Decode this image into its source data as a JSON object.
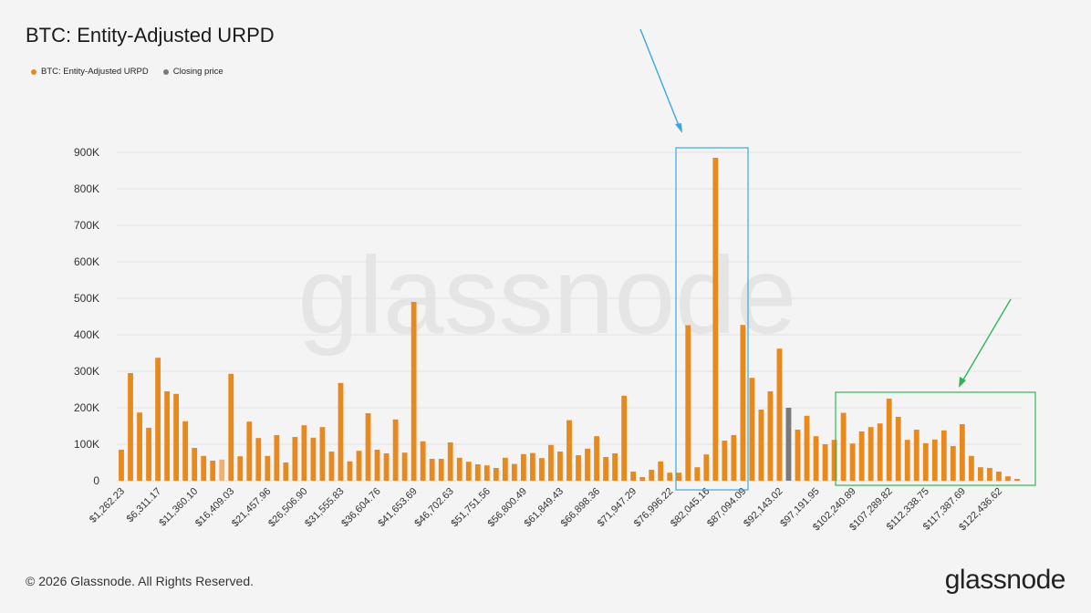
{
  "title": "BTC: Entity-Adjusted URPD",
  "legend": [
    {
      "label": "BTC: Entity-Adjusted URPD",
      "color": "#e8891e"
    },
    {
      "label": "Closing price",
      "color": "#7a7a7a"
    }
  ],
  "footer": "© 2026 Glassnode. All Rights Reserved.",
  "brand": "glassnode",
  "watermark": "glassnode",
  "chart_data": {
    "type": "bar",
    "title": "BTC: Entity-Adjusted URPD",
    "ylim": [
      0,
      950000
    ],
    "y_ticks": [
      0,
      100000,
      200000,
      300000,
      400000,
      500000,
      600000,
      700000,
      800000,
      900000
    ],
    "y_tick_labels": [
      "0",
      "100K",
      "200K",
      "300K",
      "400K",
      "500K",
      "600K",
      "700K",
      "800K",
      "900K"
    ],
    "x_tick_labels": [
      "$1,262.23",
      "$6,311.17",
      "$11,360.10",
      "$16,409.03",
      "$21,457.96",
      "$26,506.90",
      "$31,555.83",
      "$36,604.76",
      "$41,653.69",
      "$46,702.63",
      "$51,751.56",
      "$56,800.49",
      "$61,849.43",
      "$66,898.36",
      "$71,947.29",
      "$76,996.22",
      "$82,045.16",
      "$87,094.09",
      "$92,143.02",
      "$97,191.95",
      "$102,240.89",
      "$107,289.82",
      "$112,338.75",
      "$117,387.69",
      "$122,436.62"
    ],
    "x_tick_every": 4,
    "grid": true,
    "legend_position": "top-left",
    "colors": {
      "bar": "#e8891e",
      "closing": "#7a7a7a",
      "highlight": "#f0b070"
    },
    "values": [
      85000,
      295000,
      187000,
      145000,
      337000,
      245000,
      238000,
      163000,
      90000,
      68000,
      55000,
      58000,
      293000,
      67000,
      162000,
      117000,
      68000,
      125000,
      50000,
      120000,
      152000,
      118000,
      147000,
      80000,
      268000,
      53000,
      82000,
      185000,
      85000,
      75000,
      168000,
      77000,
      490000,
      108000,
      60000,
      60000,
      105000,
      63000,
      52000,
      45000,
      42000,
      35000,
      63000,
      46000,
      73000,
      76000,
      62000,
      98000,
      80000,
      166000,
      70000,
      88000,
      122000,
      65000,
      75000,
      233000,
      25000,
      10000,
      30000,
      53000,
      22000,
      22000,
      426000,
      37000,
      72000,
      885000,
      110000,
      125000,
      427000,
      282000,
      195000,
      245000,
      362000,
      200000,
      140000,
      178000,
      122000,
      100000,
      112000,
      186000,
      102000,
      135000,
      147000,
      157000,
      225000,
      175000,
      112000,
      140000,
      103000,
      113000,
      138000,
      95000,
      155000,
      68000,
      37000,
      35000,
      25000,
      12000,
      5000
    ],
    "closing_index": 73,
    "highlight_index": 11
  }
}
